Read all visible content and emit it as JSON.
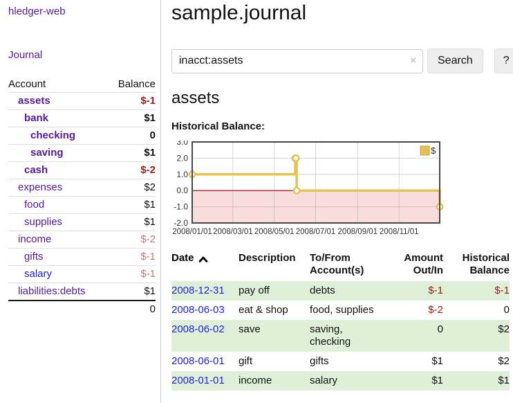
{
  "colors": {
    "link_purple": "#551a9e",
    "link_blue": "#2222dd",
    "neg_strong": "#9d1a1a",
    "neg_muted": "#bd7b7b",
    "stripe_green": "#dff0d8",
    "chart_line": "#e7c24f",
    "chart_line_dark": "#c9a227",
    "chart_neg_fill": "#f9dcdc",
    "chart_zero": "#8b0000",
    "chart_border": "#47474a"
  },
  "app": {
    "brand": "hledger-web"
  },
  "sidebar": {
    "nav_journal": "Journal",
    "accounts": {
      "header_account": "Account",
      "header_balance": "Balance",
      "rows": [
        {
          "account": "assets",
          "balance": "$-1",
          "indent": 1,
          "bold": true,
          "link": "purple",
          "tone": "negs"
        },
        {
          "account": "bank",
          "balance": "$1",
          "indent": 2,
          "bold": true,
          "link": "purple",
          "tone": ""
        },
        {
          "account": "checking",
          "balance": "0",
          "indent": 3,
          "bold": true,
          "link": "purple",
          "tone": ""
        },
        {
          "account": "saving",
          "balance": "$1",
          "indent": 3,
          "bold": true,
          "link": "purple",
          "tone": ""
        },
        {
          "account": "cash",
          "balance": "$-2",
          "indent": 2,
          "bold": true,
          "link": "purple",
          "tone": "negs"
        },
        {
          "account": "expenses",
          "balance": "$2",
          "indent": 1,
          "bold": false,
          "link": "purple",
          "tone": ""
        },
        {
          "account": "food",
          "balance": "$1",
          "indent": 2,
          "bold": false,
          "link": "purple",
          "tone": ""
        },
        {
          "account": "supplies",
          "balance": "$1",
          "indent": 2,
          "bold": false,
          "link": "purple",
          "tone": ""
        },
        {
          "account": "income",
          "balance": "$-2",
          "indent": 1,
          "bold": false,
          "link": "purple",
          "tone": "negm"
        },
        {
          "account": "gifts",
          "balance": "$-1",
          "indent": 2,
          "bold": false,
          "link": "purple",
          "tone": "negm"
        },
        {
          "account": "salary",
          "balance": "$-1",
          "indent": 2,
          "bold": false,
          "link": "blue",
          "tone": "negm"
        },
        {
          "account": "liabilities:debts",
          "balance": "$1",
          "indent": 1,
          "bold": false,
          "link": "purple",
          "tone": ""
        }
      ],
      "total": "0"
    }
  },
  "main": {
    "title": "sample.journal",
    "search": {
      "value": "inacct:assets",
      "clear_icon": "×",
      "button": "Search",
      "help": "?",
      "sort_icon": "chevron-up-icon"
    },
    "account_heading": "assets",
    "chart_heading": "Historical Balance:",
    "register": {
      "headers": [
        "Date",
        "Description",
        "To/From Account(s)",
        "Amount Out/In",
        "Historical Balance"
      ],
      "rows": [
        {
          "date": "2008-12-31",
          "description": "pay off",
          "accounts": "debts",
          "amount": "$-1",
          "amount_neg": true,
          "balance": "$-1",
          "balance_neg": true
        },
        {
          "date": "2008-06-03",
          "description": "eat & shop",
          "accounts": "food, supplies",
          "amount": "$-2",
          "amount_neg": true,
          "balance": "0",
          "balance_neg": false
        },
        {
          "date": "2008-06-02",
          "description": "save",
          "accounts": "saving, checking",
          "amount": "0",
          "amount_neg": false,
          "balance": "$2",
          "balance_neg": false
        },
        {
          "date": "2008-06-01",
          "description": "gift",
          "accounts": "gifts",
          "amount": "$1",
          "amount_neg": false,
          "balance": "$2",
          "balance_neg": false
        },
        {
          "date": "2008-01-01",
          "description": "income",
          "accounts": "salary",
          "amount": "$1",
          "amount_neg": false,
          "balance": "$1",
          "balance_neg": false
        }
      ]
    }
  },
  "chart_data": {
    "type": "line",
    "step": true,
    "title": "Historical Balance:",
    "legend": "$",
    "legend_position": "top-right",
    "grid": true,
    "x_domain": [
      "2008-01-01",
      "2008-12-31"
    ],
    "ylim": [
      -2,
      3
    ],
    "yticks": [
      "3.0",
      "2.0",
      "1.0",
      "0.0",
      "-1.0",
      "-2.0"
    ],
    "xticks": [
      "2008/01/01",
      "2008/03/01",
      "2008/05/01",
      "2008/07/01",
      "2008/09/01",
      "2008/11/01"
    ],
    "series": [
      {
        "name": "$",
        "points": [
          [
            "2008-01-01",
            1
          ],
          [
            "2008-06-01",
            2
          ],
          [
            "2008-06-02",
            2
          ],
          [
            "2008-06-03",
            0
          ],
          [
            "2008-12-31",
            -1
          ]
        ]
      }
    ],
    "negative_region_shaded": true
  }
}
